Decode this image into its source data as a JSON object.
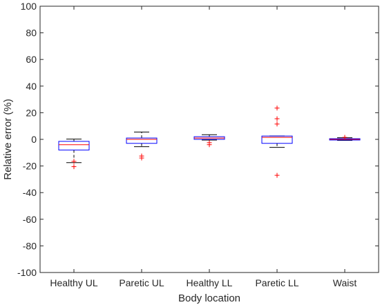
{
  "chart_data": {
    "type": "box",
    "xlabel": "Body location",
    "ylabel": "Relative error (%)",
    "ylim": [
      -100,
      100
    ],
    "yticks": [
      -100,
      -80,
      -60,
      -40,
      -20,
      0,
      20,
      40,
      60,
      80,
      100
    ],
    "grid": false,
    "categories": [
      "Healthy UL",
      "Paretic UL",
      "Healthy LL",
      "Paretic LL",
      "Waist"
    ],
    "boxes": [
      {
        "whisker_low": -17.5,
        "q1": -8,
        "median": -4,
        "q3": -1.5,
        "whisker_high": 0.2,
        "outliers": [
          -16.5,
          -20.5
        ]
      },
      {
        "whisker_low": -5.5,
        "q1": -3,
        "median": 0,
        "q3": 1,
        "whisker_high": 5.5,
        "outliers": [
          -12.5,
          -14
        ]
      },
      {
        "whisker_low": -0.5,
        "q1": 0,
        "median": 1,
        "q3": 2,
        "whisker_high": 3.5,
        "outliers": [
          -2.5,
          -4
        ]
      },
      {
        "whisker_low": -6,
        "q1": -3,
        "median": 1.5,
        "q3": 2.5,
        "whisker_high": 2.5,
        "outliers": [
          11.5,
          15.5,
          23.5,
          -27
        ]
      },
      {
        "whisker_low": -0.8,
        "q1": -0.5,
        "median": 0,
        "q3": 0.5,
        "whisker_high": 1.2,
        "outliers": [
          1.5
        ]
      }
    ],
    "colors": {
      "box": "#0000ff",
      "median": "#ff0000",
      "whisker": "#000000",
      "outlier": "#ff0000",
      "axis": "#262626"
    }
  }
}
